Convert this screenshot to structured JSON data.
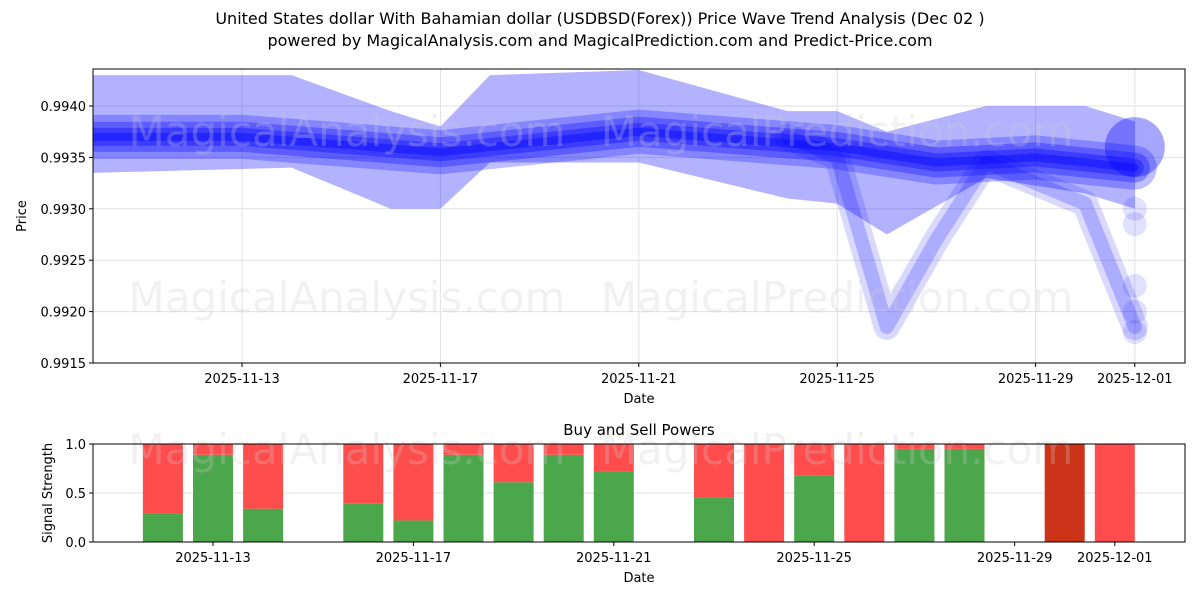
{
  "header": {
    "title": "United States dollar With Bahamian dollar (USDBSD(Forex)) Price Wave Trend Analysis (Dec 02 )",
    "subtitle": "powered by MagicalAnalysis.com and MagicalPrediction.com and Predict-Price.com"
  },
  "watermarks": [
    "MagicalAnalysis.com",
    "MagicalPrediction.com"
  ],
  "colors": {
    "wave": "#0000ff",
    "buy": "#4ca64c",
    "sell": "#ff4c4c",
    "sell_strong": "#cc3319",
    "grid": "#e0e0e0"
  },
  "chart_data": [
    {
      "type": "area",
      "title": "Price Wave Trend Analysis",
      "xlabel": "Date",
      "ylabel": "Price",
      "ylim": [
        0.9915,
        0.99436
      ],
      "xlim": [
        "2025-11-10",
        "2025-12-02"
      ],
      "grid": true,
      "yticks": [
        "0.9915",
        "0.9920",
        "0.9925",
        "0.9930",
        "0.9935",
        "0.9940"
      ],
      "xticks": [
        "2025-11-13",
        "2025-11-17",
        "2025-11-21",
        "2025-11-25",
        "2025-11-29",
        "2025-12-01"
      ],
      "series": [
        {
          "name": "wave-wide-upper",
          "x": [
            "2025-11-10",
            "2025-11-14",
            "2025-11-16",
            "2025-11-17",
            "2025-11-18",
            "2025-11-21",
            "2025-11-24",
            "2025-11-25",
            "2025-11-26",
            "2025-11-28",
            "2025-11-30",
            "2025-12-01"
          ],
          "values": [
            0.9943,
            0.9943,
            0.99395,
            0.9938,
            0.9943,
            0.99435,
            0.99395,
            0.99395,
            0.99375,
            0.994,
            0.994,
            0.99385
          ]
        },
        {
          "name": "wave-wide-lower",
          "x": [
            "2025-11-10",
            "2025-11-14",
            "2025-11-16",
            "2025-11-17",
            "2025-11-18",
            "2025-11-21",
            "2025-11-24",
            "2025-11-25",
            "2025-11-26",
            "2025-11-28",
            "2025-11-30",
            "2025-12-01"
          ],
          "values": [
            0.99335,
            0.9934,
            0.993,
            0.993,
            0.99345,
            0.99345,
            0.9931,
            0.99305,
            0.99275,
            0.9933,
            0.99315,
            0.993
          ]
        },
        {
          "name": "wave-core",
          "x": [
            "2025-11-10",
            "2025-11-13",
            "2025-11-17",
            "2025-11-21",
            "2025-11-25",
            "2025-11-27",
            "2025-11-29",
            "2025-12-01"
          ],
          "values": [
            0.9937,
            0.9937,
            0.99355,
            0.99375,
            0.9936,
            0.99345,
            0.9935,
            0.9934
          ]
        },
        {
          "name": "wave-dip",
          "x": [
            "2025-11-24",
            "2025-11-25",
            "2025-11-26",
            "2025-11-27",
            "2025-11-28",
            "2025-11-30",
            "2025-12-01"
          ],
          "values": [
            0.9937,
            0.9935,
            0.99185,
            0.9927,
            0.99345,
            0.99305,
            0.99185
          ]
        }
      ]
    },
    {
      "type": "bar",
      "title": "Buy and Sell Powers",
      "xlabel": "Date",
      "ylabel": "Signal Strength",
      "ylim": [
        0.0,
        1.0
      ],
      "yticks": [
        "0.0",
        "0.5",
        "1.0"
      ],
      "xticks": [
        "2025-11-13",
        "2025-11-17",
        "2025-11-21",
        "2025-11-25",
        "2025-11-29",
        "2025-12-01"
      ],
      "categories": [
        "2025-11-12",
        "2025-11-13",
        "2025-11-14",
        "2025-11-16",
        "2025-11-17",
        "2025-11-18",
        "2025-11-19",
        "2025-11-20",
        "2025-11-21",
        "2025-11-23",
        "2025-11-24",
        "2025-11-25",
        "2025-11-26",
        "2025-11-27",
        "2025-11-28",
        "2025-11-30",
        "2025-12-01"
      ],
      "series": [
        {
          "name": "Buy",
          "values": [
            0.29,
            0.89,
            0.34,
            0.39,
            0.22,
            0.89,
            0.61,
            0.89,
            0.72,
            0.45,
            0.0,
            0.68,
            0.0,
            0.95,
            0.95,
            0.0,
            0.0
          ]
        },
        {
          "name": "Sell",
          "values": [
            0.71,
            0.11,
            0.66,
            0.61,
            0.78,
            0.11,
            0.39,
            0.11,
            0.28,
            0.55,
            1.0,
            0.32,
            1.0,
            0.05,
            0.05,
            1.0,
            1.0
          ]
        }
      ],
      "strong_sell_days": [
        "2025-11-30"
      ]
    }
  ]
}
